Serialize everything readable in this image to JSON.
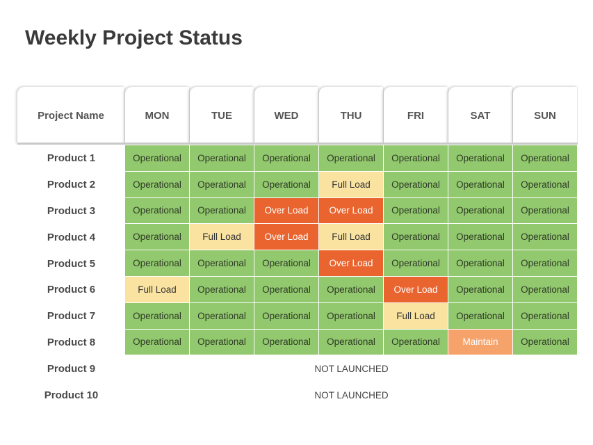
{
  "title": "Weekly Project Status",
  "header": {
    "name_label": "Project Name",
    "days": [
      "MON",
      "TUE",
      "WED",
      "THU",
      "FRI",
      "SAT",
      "SUN"
    ]
  },
  "status_colors": {
    "Operational": "#92c86e",
    "Full Load": "#fae3a1",
    "Over Load": "#e9642f",
    "Maintain": "#f6a26b"
  },
  "rows": [
    {
      "name": "Product 1",
      "cells": [
        "Operational",
        "Operational",
        "Operational",
        "Operational",
        "Operational",
        "Operational",
        "Operational"
      ]
    },
    {
      "name": "Product 2",
      "cells": [
        "Operational",
        "Operational",
        "Operational",
        "Full Load",
        "Operational",
        "Operational",
        "Operational"
      ]
    },
    {
      "name": "Product 3",
      "cells": [
        "Operational",
        "Operational",
        "Over Load",
        "Over Load",
        "Operational",
        "Operational",
        "Operational"
      ]
    },
    {
      "name": "Product 4",
      "cells": [
        "Operational",
        "Full Load",
        "Over Load",
        "Full Load",
        "Operational",
        "Operational",
        "Operational"
      ]
    },
    {
      "name": "Product 5",
      "cells": [
        "Operational",
        "Operational",
        "Operational",
        "Over Load",
        "Operational",
        "Operational",
        "Operational"
      ]
    },
    {
      "name": "Product 6",
      "cells": [
        "Full Load",
        "Operational",
        "Operational",
        "Operational",
        "Over Load",
        "Operational",
        "Operational"
      ]
    },
    {
      "name": "Product 7",
      "cells": [
        "Operational",
        "Operational",
        "Operational",
        "Operational",
        "Full Load",
        "Operational",
        "Operational"
      ]
    },
    {
      "name": "Product 8",
      "cells": [
        "Operational",
        "Operational",
        "Operational",
        "Operational",
        "Operational",
        "Maintain",
        "Operational"
      ]
    },
    {
      "name": "Product 9",
      "note": "NOT LAUNCHED"
    },
    {
      "name": "Product 10",
      "note": "NOT LAUNCHED"
    }
  ]
}
